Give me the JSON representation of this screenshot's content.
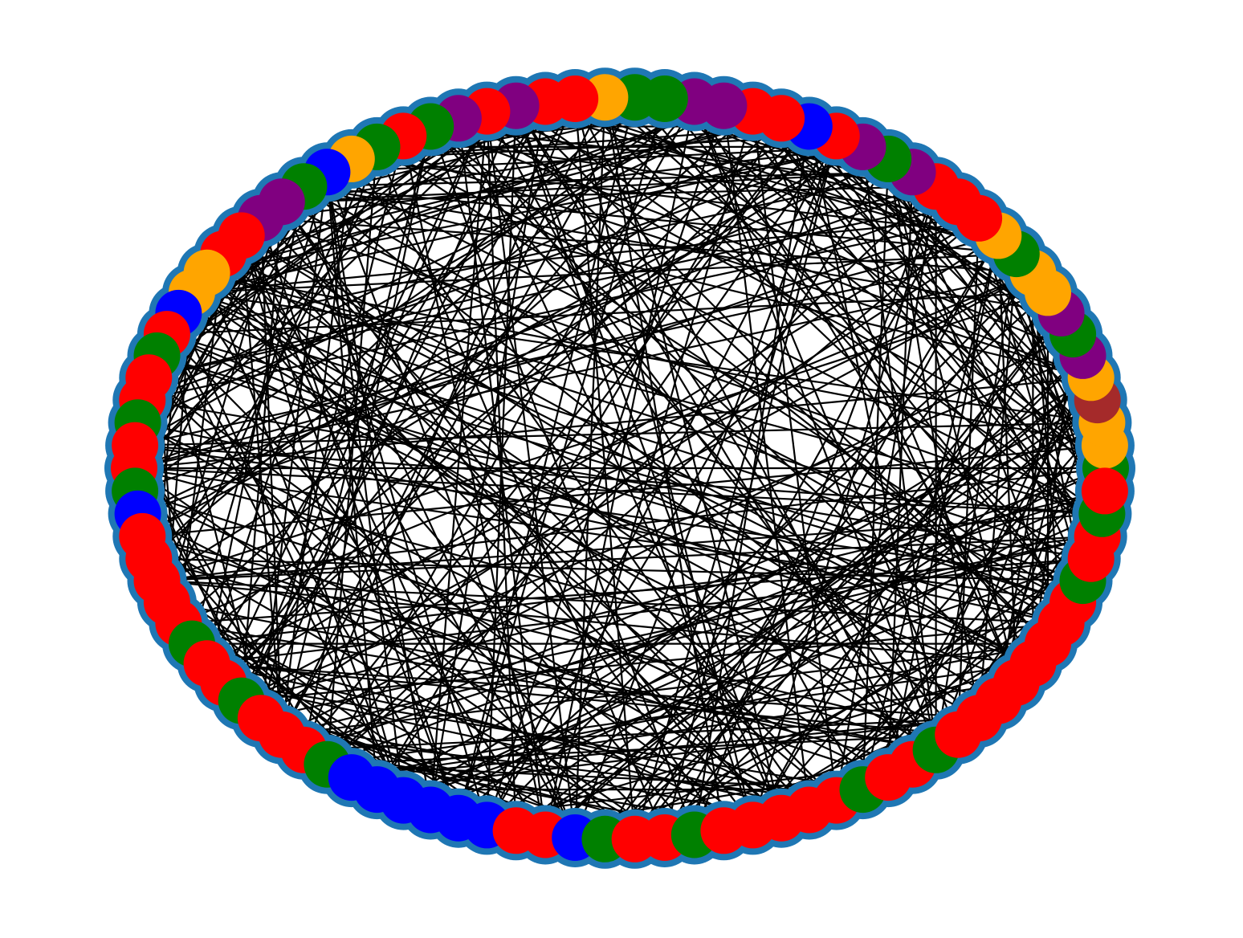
{
  "graph": {
    "layout": "circular",
    "node_count": 102,
    "node_outline_color": "#1f77b4",
    "edge_color": "#000000",
    "background": "#ffffff",
    "palette": {
      "red": "#ff0000",
      "green": "#008000",
      "blue": "#0000ff",
      "orange": "#ffa500",
      "purple": "#800080",
      "brown": "#a52a2a"
    },
    "node_colors": [
      "green",
      "orange",
      "orange",
      "brown",
      "orange",
      "purple",
      "green",
      "purple",
      "orange",
      "orange",
      "green",
      "orange",
      "red",
      "red",
      "red",
      "purple",
      "green",
      "purple",
      "red",
      "blue",
      "red",
      "red",
      "purple",
      "purple",
      "green",
      "green",
      "orange",
      "red",
      "red",
      "purple",
      "red",
      "purple",
      "green",
      "red",
      "green",
      "orange",
      "blue",
      "green",
      "purple",
      "purple",
      "red",
      "red",
      "orange",
      "orange",
      "blue",
      "red",
      "green",
      "red",
      "red",
      "green",
      "red",
      "red",
      "green",
      "blue",
      "red",
      "red",
      "red",
      "red",
      "red",
      "green",
      "red",
      "red",
      "green",
      "red",
      "red",
      "red",
      "green",
      "blue",
      "blue",
      "blue",
      "blue",
      "blue",
      "blue",
      "red",
      "red",
      "blue",
      "green",
      "red",
      "red",
      "green",
      "red",
      "red",
      "red",
      "red",
      "red",
      "green",
      "red",
      "red",
      "green",
      "red",
      "red",
      "red",
      "red",
      "red",
      "red",
      "red",
      "red",
      "green",
      "red",
      "red",
      "green",
      "red"
    ],
    "edge_count": 500
  }
}
